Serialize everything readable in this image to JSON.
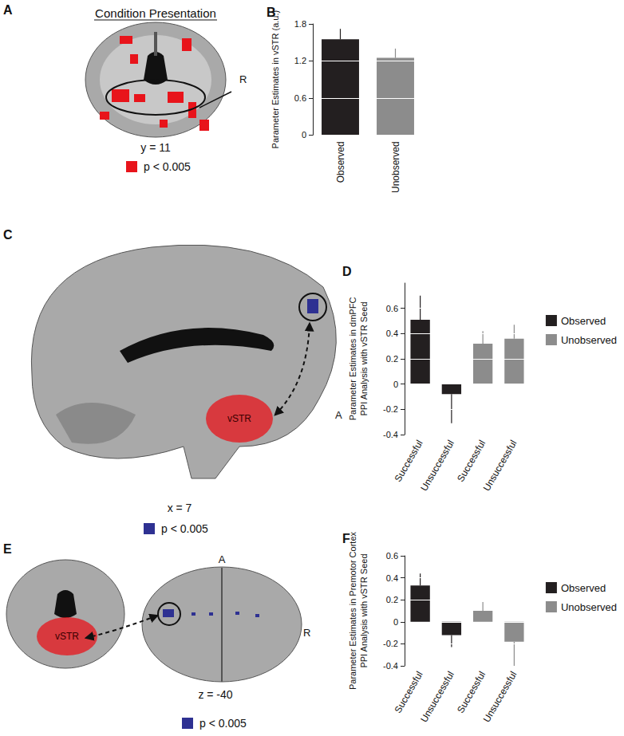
{
  "chart_data": [
    {
      "type": "bar",
      "panel_label": "B",
      "categories": [
        "Observed",
        "Unobserved"
      ],
      "values": [
        1.55,
        1.25
      ],
      "errors": [
        0.17,
        0.15
      ],
      "colors": [
        "#231f20",
        "#8c8c8c"
      ],
      "ylabel": "Parameter Estimates in vSTR (a.u.)",
      "ylim": [
        0,
        1.8
      ],
      "yticks": [
        0,
        0.6,
        1.2,
        1.8
      ],
      "grid": true
    },
    {
      "type": "bar",
      "panel_label": "D",
      "categories": [
        "Successful",
        "Unsuccessful",
        "Successful",
        "Unsuccessful"
      ],
      "series": [
        {
          "name": "Observed",
          "color": "#231f20",
          "values": [
            0.51,
            -0.08,
            null,
            null
          ],
          "errors": [
            0.19,
            0.23,
            null,
            null
          ]
        },
        {
          "name": "Unobserved",
          "color": "#8c8c8c",
          "values": [
            null,
            null,
            0.32,
            0.36
          ],
          "errors": [
            null,
            null,
            0.1,
            0.11
          ]
        }
      ],
      "ylabel": "Parameter Estimates in dmPFC\nPPI Analysis with vSTR Seed",
      "ylim": [
        -0.4,
        0.8
      ],
      "yticks": [
        -0.4,
        -0.2,
        0,
        0.2,
        0.4,
        0.6
      ],
      "grid": true,
      "legend": "right"
    },
    {
      "type": "bar",
      "panel_label": "F",
      "categories": [
        "Successful",
        "Unsuccessful",
        "Successful",
        "Unsuccessful"
      ],
      "series": [
        {
          "name": "Observed",
          "color": "#231f20",
          "values": [
            0.33,
            -0.12,
            null,
            null
          ],
          "errors": [
            0.11,
            0.11,
            null,
            null
          ]
        },
        {
          "name": "Unobserved",
          "color": "#8c8c8c",
          "values": [
            null,
            null,
            0.1,
            -0.18
          ],
          "errors": [
            null,
            null,
            0.08,
            0.22
          ]
        }
      ],
      "ylabel": "Parameter Estimates in Premotor Cortex\nPPI Analysis with vSTR Seed",
      "ylim": [
        -0.4,
        0.6
      ],
      "yticks": [
        -0.4,
        -0.2,
        0,
        0.2,
        0.4,
        0.6
      ],
      "grid": true,
      "legend": "right"
    }
  ],
  "figure": {
    "panels": [
      {
        "letter": "A",
        "title": "Condition Presentation",
        "slice": "y = 11",
        "orientation": [
          "R"
        ],
        "legend": {
          "label": "p < 0.005",
          "color": "#e8141b"
        }
      },
      {
        "letter": "C",
        "slice": "x = 7",
        "orientation": [
          "A"
        ],
        "seed": "vSTR",
        "legend": {
          "label": "p < 0.005",
          "color": "#2e3192"
        }
      },
      {
        "letter": "E",
        "slice": "z = -40",
        "orientation": [
          "A",
          "R"
        ],
        "seed": "vSTR",
        "legend": {
          "label": "p < 0.005",
          "color": "#2e3192"
        }
      }
    ]
  }
}
